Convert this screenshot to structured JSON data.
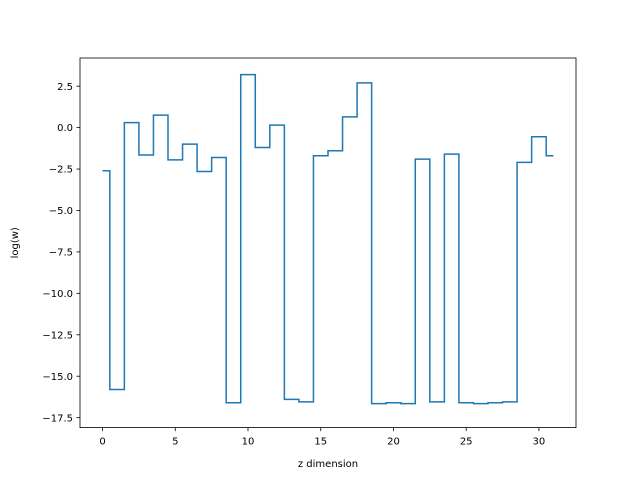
{
  "chart_data": {
    "type": "line",
    "drawstyle": "steps-mid",
    "title": "",
    "xlabel": "z dimension",
    "ylabel": "log(w)",
    "xlim": [
      -1.55,
      32.55
    ],
    "ylim": [
      -18.1,
      4.2
    ],
    "xticks": [
      0,
      5,
      10,
      15,
      20,
      25,
      30
    ],
    "yticks": [
      2.5,
      0.0,
      -2.5,
      -5.0,
      -7.5,
      -10.0,
      -12.5,
      -15.0,
      -17.5
    ],
    "ytick_labels": [
      "2.5",
      "0.0",
      "−2.5",
      "−5.0",
      "−7.5",
      "−10.0",
      "−12.5",
      "−15.0",
      "−17.5"
    ],
    "grid": false,
    "series": [
      {
        "color": "#1f77b4",
        "x": [
          0,
          1,
          2,
          3,
          4,
          5,
          6,
          7,
          8,
          9,
          10,
          11,
          12,
          13,
          14,
          15,
          16,
          17,
          18,
          19,
          20,
          21,
          22,
          23,
          24,
          25,
          26,
          27,
          28,
          29,
          30,
          31
        ],
        "values": [
          -2.6,
          -15.8,
          0.3,
          -1.65,
          0.75,
          -1.95,
          -1.0,
          -2.65,
          -1.8,
          -16.6,
          3.2,
          -1.2,
          0.15,
          -16.4,
          -16.55,
          -1.7,
          -1.4,
          0.65,
          2.7,
          -16.65,
          -16.6,
          -16.65,
          -1.9,
          -16.55,
          -1.6,
          -16.6,
          -16.65,
          -16.6,
          -16.55,
          -2.1,
          -0.55,
          -1.7
        ]
      }
    ]
  }
}
